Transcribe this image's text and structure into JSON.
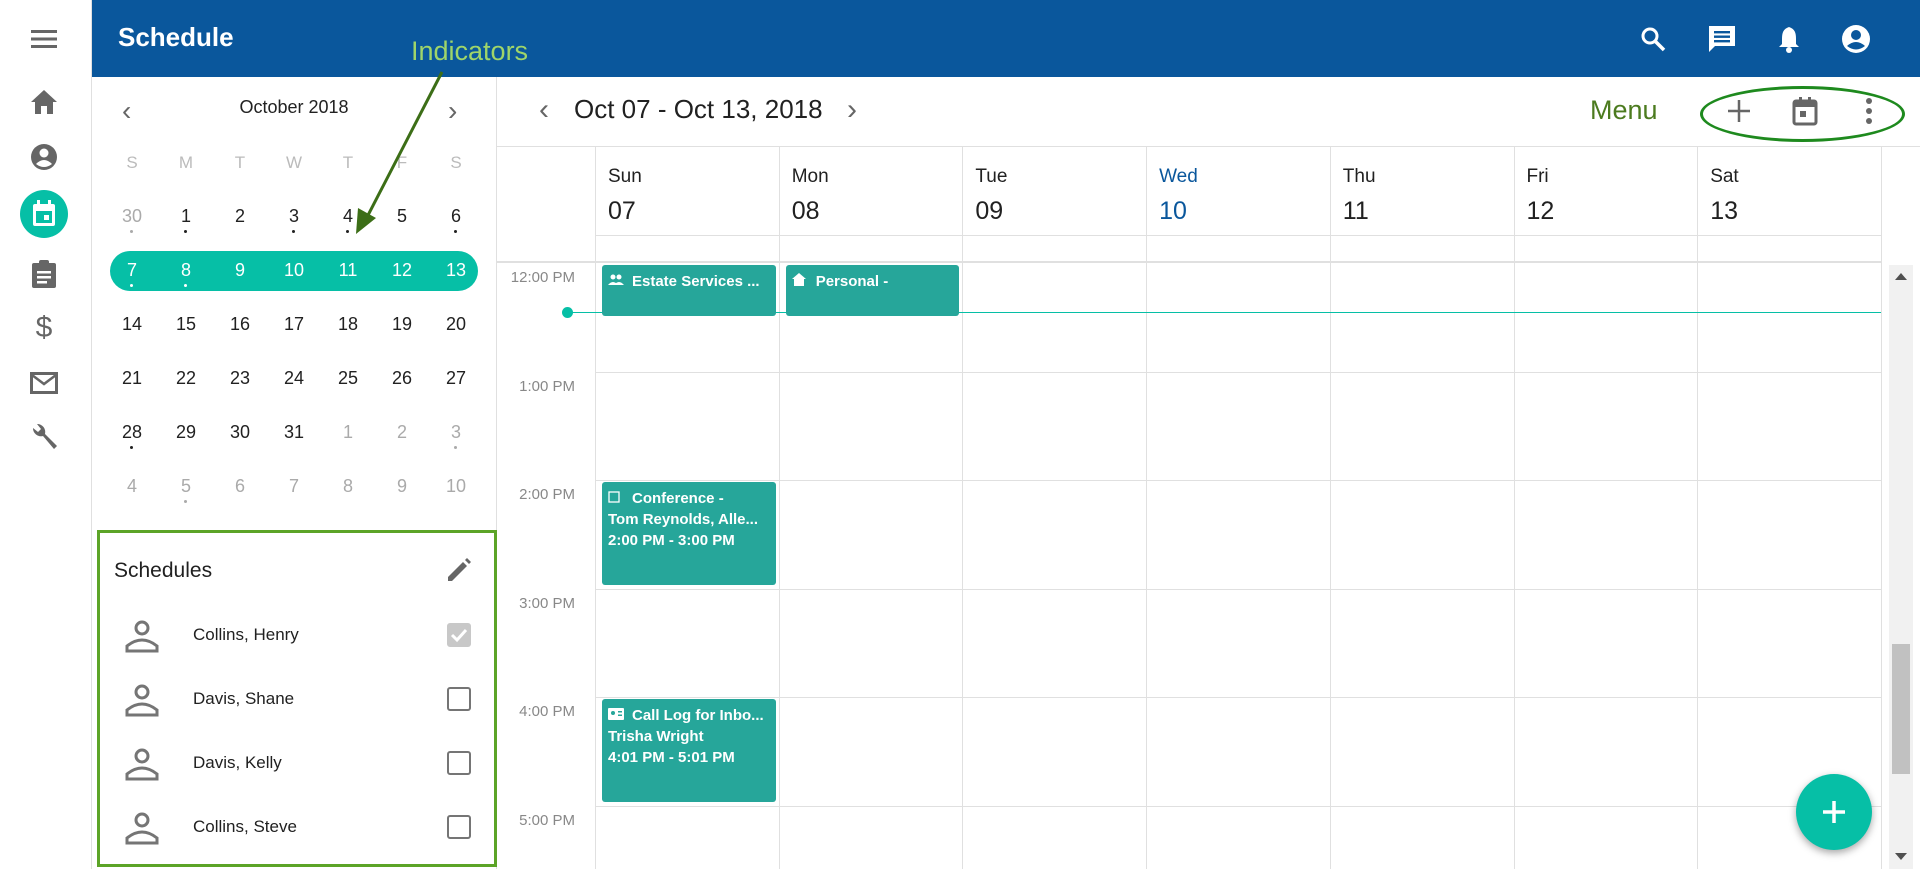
{
  "app": {
    "title": "Schedule",
    "accent": "#06bfa6",
    "brand": "#0a579c",
    "event_color": "#26a69a"
  },
  "annotations": {
    "indicators": "Indicators",
    "menu": "Menu"
  },
  "rail": {
    "items": [
      "menu-icon",
      "home-icon",
      "account-circle-icon",
      "calendar-icon",
      "clipboard-icon",
      "dollar-icon",
      "mail-icon",
      "wrench-icon"
    ],
    "active": "calendar-icon"
  },
  "topbar": {
    "icons": [
      "search-icon",
      "chat-icon",
      "bell-icon",
      "account-icon"
    ]
  },
  "mini_calendar": {
    "title": "October 2018",
    "weekdays": [
      "S",
      "M",
      "T",
      "W",
      "T",
      "F",
      "S"
    ],
    "weeks": [
      [
        {
          "d": "30",
          "out": true,
          "dot": true
        },
        {
          "d": "1",
          "dot": true
        },
        {
          "d": "2"
        },
        {
          "d": "3",
          "dot": true
        },
        {
          "d": "4",
          "dot": true
        },
        {
          "d": "5"
        },
        {
          "d": "6",
          "dot": true
        }
      ],
      [
        {
          "d": "7",
          "sel": true,
          "dot": true
        },
        {
          "d": "8",
          "sel": true,
          "dot": true
        },
        {
          "d": "9",
          "sel": true
        },
        {
          "d": "10",
          "sel": true
        },
        {
          "d": "11",
          "sel": true
        },
        {
          "d": "12",
          "sel": true
        },
        {
          "d": "13",
          "sel": true
        }
      ],
      [
        {
          "d": "14"
        },
        {
          "d": "15"
        },
        {
          "d": "16"
        },
        {
          "d": "17"
        },
        {
          "d": "18"
        },
        {
          "d": "19"
        },
        {
          "d": "20"
        }
      ],
      [
        {
          "d": "21"
        },
        {
          "d": "22"
        },
        {
          "d": "23"
        },
        {
          "d": "24"
        },
        {
          "d": "25"
        },
        {
          "d": "26"
        },
        {
          "d": "27"
        }
      ],
      [
        {
          "d": "28",
          "dot": true
        },
        {
          "d": "29"
        },
        {
          "d": "30"
        },
        {
          "d": "31"
        },
        {
          "d": "1",
          "out": true
        },
        {
          "d": "2",
          "out": true
        },
        {
          "d": "3",
          "out": true,
          "dot": true
        }
      ],
      [
        {
          "d": "4",
          "out": true
        },
        {
          "d": "5",
          "out": true,
          "dot": true
        },
        {
          "d": "6",
          "out": true
        },
        {
          "d": "7",
          "out": true
        },
        {
          "d": "8",
          "out": true
        },
        {
          "d": "9",
          "out": true
        },
        {
          "d": "10",
          "out": true
        }
      ]
    ]
  },
  "schedules": {
    "title": "Schedules",
    "people": [
      {
        "name": "Collins, Henry",
        "checked": true
      },
      {
        "name": "Davis, Shane",
        "checked": false
      },
      {
        "name": "Davis, Kelly",
        "checked": false
      },
      {
        "name": "Collins, Steve",
        "checked": false
      }
    ]
  },
  "week": {
    "range": "Oct 07 - Oct 13, 2018",
    "days": [
      {
        "name": "Sun",
        "num": "07"
      },
      {
        "name": "Mon",
        "num": "08"
      },
      {
        "name": "Tue",
        "num": "09"
      },
      {
        "name": "Wed",
        "num": "10",
        "today": true
      },
      {
        "name": "Thu",
        "num": "11"
      },
      {
        "name": "Fri",
        "num": "12"
      },
      {
        "name": "Sat",
        "num": "13"
      }
    ],
    "hours": [
      "12:00 PM",
      "1:00 PM",
      "2:00 PM",
      "3:00 PM",
      "4:00 PM",
      "5:00 PM"
    ],
    "now_hour": 12.45,
    "events": [
      {
        "day": 0,
        "start": 12,
        "end": 12.47,
        "icon": "group-icon",
        "lines": [
          "Estate Services ..."
        ]
      },
      {
        "day": 1,
        "start": 12,
        "end": 12.47,
        "icon": "home-icon",
        "lines": [
          "Personal -"
        ]
      },
      {
        "day": 0,
        "start": 14,
        "end": 14.95,
        "icon": "square-icon",
        "lines": [
          "Conference -",
          "Tom Reynolds, Alle...",
          "2:00 PM - 3:00 PM"
        ]
      },
      {
        "day": 0,
        "start": 16,
        "end": 16.95,
        "icon": "contact-card-icon",
        "lines": [
          "Call Log for Inbo...",
          "Trisha Wright",
          "4:01 PM - 5:01 PM"
        ]
      }
    ]
  }
}
